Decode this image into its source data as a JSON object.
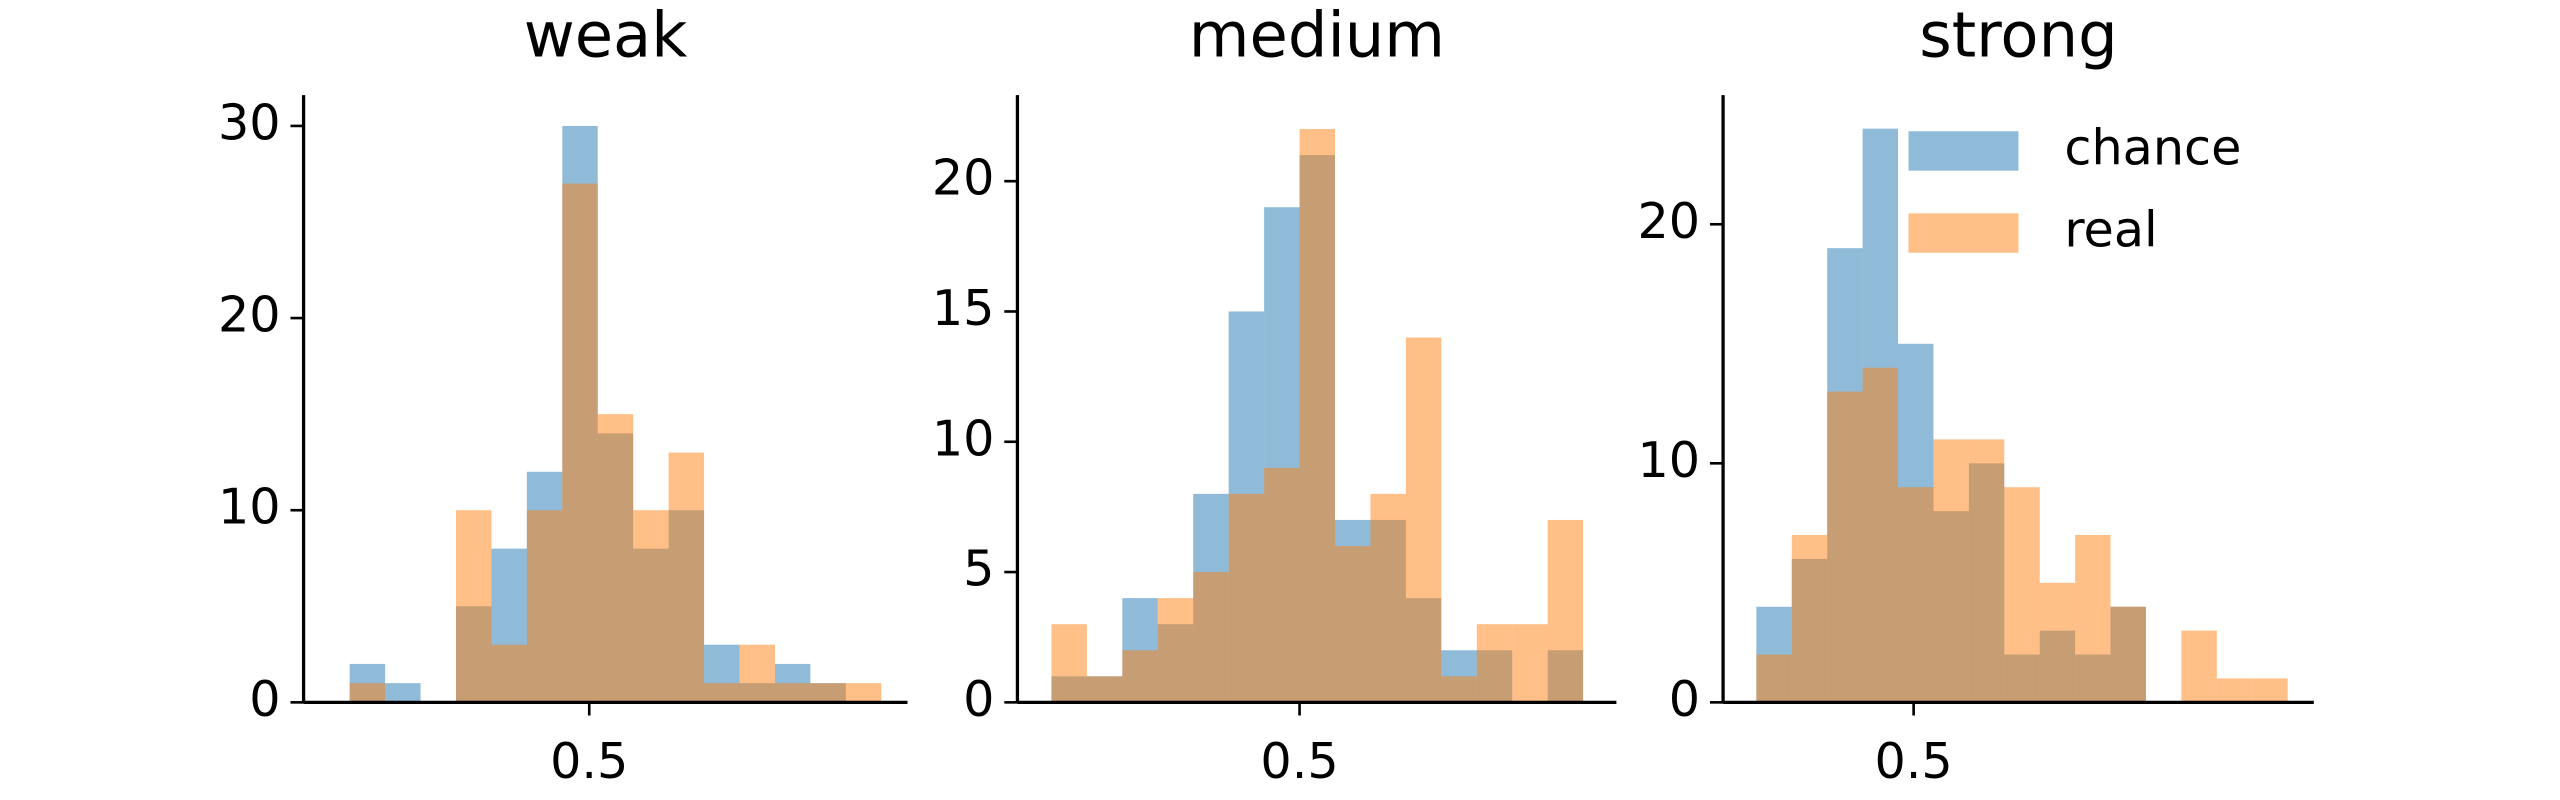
{
  "chart_data": [
    {
      "type": "histogram",
      "title": "weak",
      "bins": [
        0.162,
        0.212,
        0.262,
        0.312,
        0.362,
        0.412,
        0.462,
        0.512,
        0.562,
        0.612,
        0.662,
        0.712,
        0.762,
        0.812,
        0.862,
        0.912
      ],
      "series": [
        {
          "name": "chance",
          "color": "#1f77b4",
          "values": [
            2,
            1,
            0,
            5,
            8,
            12,
            30,
            14,
            8,
            10,
            3,
            1,
            2,
            1,
            0
          ]
        },
        {
          "name": "real",
          "color": "#ff7f0e",
          "values": [
            1,
            0,
            0,
            10,
            3,
            10,
            27,
            15,
            10,
            13,
            1,
            3,
            1,
            1,
            1
          ]
        }
      ],
      "xlim": [
        0.097,
        0.949
      ],
      "xticks": [
        0.5
      ],
      "ylim": [
        0,
        31.6
      ],
      "yticks": [
        0,
        10,
        20,
        30
      ]
    },
    {
      "type": "histogram",
      "title": "medium",
      "bins": [
        0.15,
        0.2,
        0.25,
        0.3,
        0.35,
        0.4,
        0.45,
        0.5,
        0.55,
        0.6,
        0.65,
        0.7,
        0.75,
        0.8,
        0.85,
        0.9
      ],
      "series": [
        {
          "name": "chance",
          "color": "#1f77b4",
          "values": [
            1,
            1,
            4,
            3,
            8,
            15,
            19,
            21,
            7,
            7,
            4,
            2,
            2,
            0,
            2
          ]
        },
        {
          "name": "real",
          "color": "#ff7f0e",
          "values": [
            3,
            1,
            2,
            4,
            5,
            8,
            9,
            22,
            6,
            8,
            14,
            1,
            3,
            3,
            7
          ]
        }
      ],
      "xlim": [
        0.102,
        0.947
      ],
      "xticks": [
        0.5
      ],
      "ylim": [
        0,
        23.3
      ],
      "yticks": [
        0,
        5,
        10,
        15,
        20
      ]
    },
    {
      "type": "histogram",
      "title": "strong",
      "bins": [
        0.278,
        0.328,
        0.378,
        0.428,
        0.478,
        0.528,
        0.578,
        0.628,
        0.678,
        0.728,
        0.778,
        0.828,
        0.878,
        0.928,
        0.978,
        1.028
      ],
      "series": [
        {
          "name": "chance",
          "color": "#1f77b4",
          "values": [
            4,
            6,
            19,
            24,
            15,
            8,
            10,
            2,
            3,
            2,
            4,
            0,
            0,
            0,
            0
          ]
        },
        {
          "name": "real",
          "color": "#ff7f0e",
          "values": [
            2,
            7,
            13,
            14,
            9,
            11,
            11,
            9,
            5,
            7,
            4,
            0,
            3,
            1,
            1
          ]
        }
      ],
      "xlim": [
        0.231,
        1.065
      ],
      "xticks": [
        0.5
      ],
      "ylim": [
        0,
        25.4
      ],
      "yticks": [
        0,
        10,
        20
      ],
      "legend": "upper right"
    }
  ]
}
